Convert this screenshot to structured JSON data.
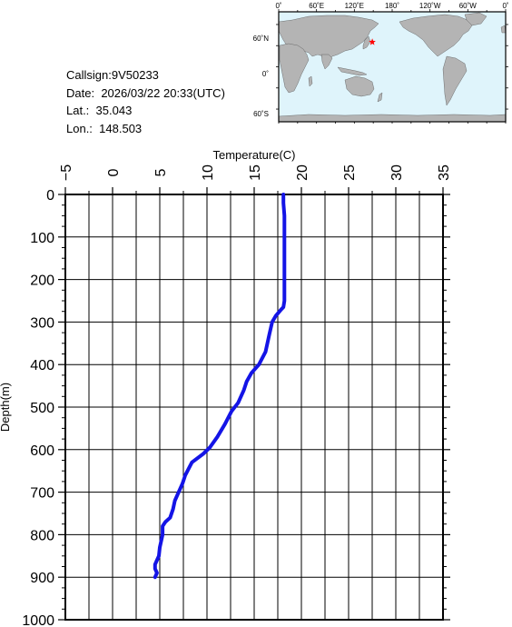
{
  "station": {
    "callsign_label": "Callsign:",
    "callsign": "9V50233",
    "date_label": "Date:",
    "date": "2026/03/22 20:33(UTC)",
    "lat_label": "Lat.:",
    "lat": "35.043",
    "lon_label": "Lon.:",
    "lon": "148.503"
  },
  "map": {
    "top_labels": [
      "0˚",
      "60˚E",
      "120˚E",
      "180˚",
      "120˚W",
      "60˚W",
      "0˚"
    ],
    "left_labels": [
      "60˚N",
      "0˚",
      "60˚S"
    ],
    "marker_lon_deg": 148.503,
    "marker_lat_deg": 35.043,
    "ocean_color": "#dff4fb",
    "land_color": "#b4b4b4",
    "marker_color": "#ff0000"
  },
  "chart_data": {
    "type": "line",
    "title": "",
    "xlabel": "Temperature(C)",
    "ylabel": "Depth(m)",
    "x_axis_position": "top",
    "y_axis_reversed": true,
    "xlim": [
      -5,
      35
    ],
    "ylim": [
      0,
      1000
    ],
    "x_ticks": [
      -5,
      0,
      5,
      10,
      15,
      20,
      25,
      30,
      35
    ],
    "y_ticks": [
      0,
      100,
      200,
      300,
      400,
      500,
      600,
      700,
      800,
      900,
      1000
    ],
    "grid": true,
    "line_color": "#1414e6",
    "series": [
      {
        "x": [
          18.1,
          18.1,
          18.2,
          18.2,
          18.2,
          18.2,
          18.2,
          18.1,
          17.8,
          17.3,
          16.9,
          16.6,
          16.2,
          15.5,
          14.7,
          14.2,
          13.9,
          13.3,
          12.6,
          11.9,
          11.1,
          10.3,
          9.6,
          8.4,
          7.7,
          7.4,
          7.0,
          6.6,
          6.4,
          6.1,
          5.6,
          5.3,
          5.3,
          5.0,
          4.9,
          4.7,
          4.5,
          4.5,
          4.7,
          4.5
        ],
        "y": [
          0,
          20,
          50,
          100,
          150,
          200,
          250,
          265,
          272,
          285,
          300,
          330,
          370,
          400,
          420,
          440,
          460,
          490,
          510,
          540,
          570,
          595,
          610,
          630,
          660,
          680,
          700,
          720,
          740,
          760,
          770,
          780,
          800,
          830,
          850,
          860,
          870,
          880,
          890,
          900
        ]
      }
    ]
  }
}
